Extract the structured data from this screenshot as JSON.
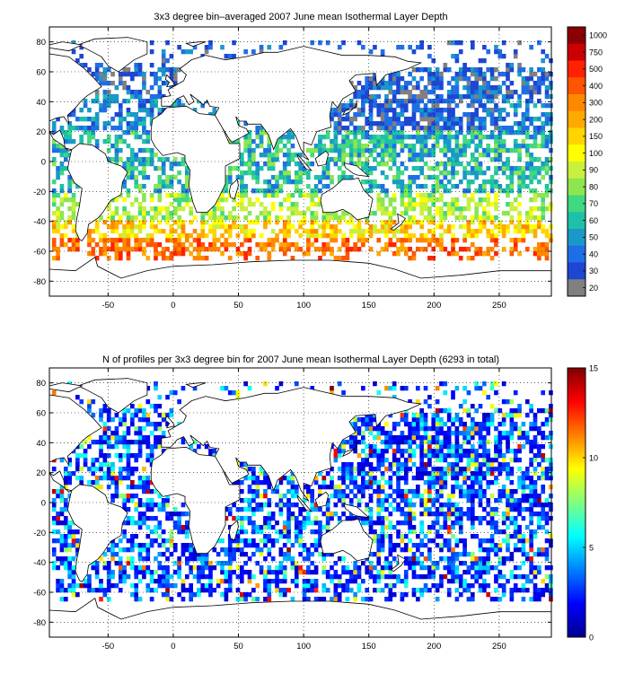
{
  "panels": {
    "top": {
      "title": "3x3 degree bin–averaged 2007 June mean Isothermal Layer Depth",
      "x_ticks": [
        "-50",
        "0",
        "50",
        "100",
        "150",
        "200",
        "250"
      ],
      "y_ticks": [
        "80",
        "60",
        "40",
        "20",
        "0",
        "-20",
        "-40",
        "-60",
        "-80"
      ],
      "colorbar_labels": [
        "1000",
        "750",
        "500",
        "400",
        "300",
        "200",
        "150",
        "100",
        "90",
        "80",
        "70",
        "60",
        "50",
        "40",
        "30",
        "20"
      ],
      "colorbar_colors": [
        "#8b0000",
        "#cc0000",
        "#ff2200",
        "#ff5500",
        "#ff8800",
        "#ffaa00",
        "#ffd400",
        "#ffff00",
        "#c8f03c",
        "#8ce650",
        "#40d880",
        "#1ec0a8",
        "#1a98c8",
        "#1e6ee6",
        "#1e46d2",
        "#808080"
      ]
    },
    "bottom": {
      "title": "N of profiles per 3x3 degree bin for 2007 June mean Isothermal Layer Depth  (6293 in total)",
      "x_ticks": [
        "-50",
        "0",
        "50",
        "100",
        "150",
        "200",
        "250"
      ],
      "y_ticks": [
        "80",
        "60",
        "40",
        "20",
        "0",
        "-20",
        "-40",
        "-60",
        "-80"
      ],
      "colorbar_labels": [
        "15",
        "10",
        "5",
        "0"
      ],
      "colorbar_range": [
        0,
        15
      ]
    }
  },
  "chart_data": [
    {
      "type": "heatmap",
      "title": "3x3 degree bin–averaged 2007 June mean Isothermal Layer Depth",
      "xlim": [
        -95,
        290
      ],
      "ylim": [
        -90,
        90
      ],
      "x_ticks": [
        -50,
        0,
        50,
        100,
        150,
        200,
        250
      ],
      "y_ticks": [
        -80,
        -60,
        -40,
        -20,
        0,
        20,
        40,
        60,
        80
      ],
      "bin_size_deg": 3,
      "grid": true,
      "colorbar": {
        "levels": [
          20,
          30,
          40,
          50,
          60,
          70,
          80,
          90,
          100,
          150,
          200,
          300,
          400,
          500,
          750,
          1000
        ],
        "position": "right"
      }
    },
    {
      "type": "heatmap",
      "title": "N of profiles per 3x3 degree bin for 2007 June mean Isothermal Layer Depth  (6293 in total)",
      "xlim": [
        -95,
        290
      ],
      "ylim": [
        -90,
        90
      ],
      "x_ticks": [
        -50,
        0,
        50,
        100,
        150,
        200,
        250
      ],
      "y_ticks": [
        -80,
        -60,
        -40,
        -20,
        0,
        20,
        40,
        60,
        80
      ],
      "bin_size_deg": 3,
      "grid": true,
      "total_profiles": 6293,
      "colorbar": {
        "range": [
          0,
          15
        ],
        "ticks": [
          0,
          5,
          10,
          15
        ],
        "position": "right"
      }
    }
  ]
}
